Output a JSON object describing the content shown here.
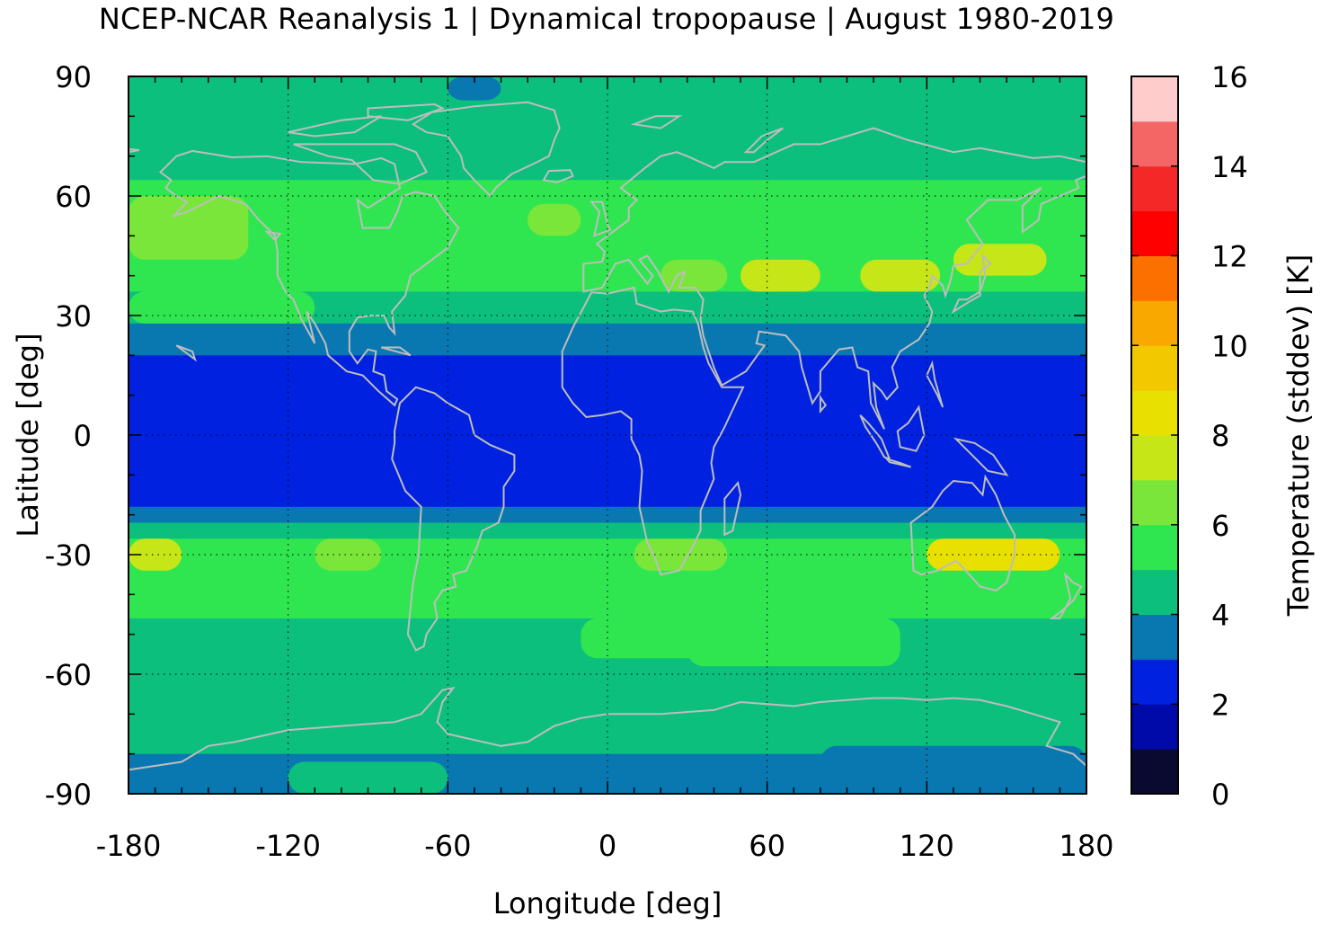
{
  "figure": {
    "title": "NCEP-NCAR Reanalysis 1 | Dynamical tropopause | August 1980-2019"
  },
  "chart_data": {
    "type": "heatmap",
    "title": "NCEP-NCAR Reanalysis 1 | Dynamical tropopause | August 1980-2019",
    "xlabel": "Longitude [deg]",
    "ylabel": "Latitude [deg]",
    "xlim": [
      -180,
      180
    ],
    "ylim": [
      -90,
      90
    ],
    "xticks": [
      -180,
      -120,
      -60,
      0,
      60,
      120,
      180
    ],
    "yticks": [
      -90,
      -60,
      -30,
      0,
      30,
      60,
      90
    ],
    "grid": true,
    "colorbar": {
      "label": "Temperature (stddev) [K]",
      "range": [
        0,
        16
      ],
      "ticks": [
        0,
        2,
        4,
        6,
        8,
        10,
        12,
        14,
        16
      ],
      "levels": [
        {
          "from": 0,
          "to": 1,
          "color": "#0a0a30"
        },
        {
          "from": 1,
          "to": 2,
          "color": "#000aa8"
        },
        {
          "from": 2,
          "to": 3,
          "color": "#0022e0"
        },
        {
          "from": 3,
          "to": 4,
          "color": "#0a78b0"
        },
        {
          "from": 4,
          "to": 5,
          "color": "#0cbf7d"
        },
        {
          "from": 5,
          "to": 6,
          "color": "#30e650"
        },
        {
          "from": 6,
          "to": 7,
          "color": "#7ae63a"
        },
        {
          "from": 7,
          "to": 8,
          "color": "#c6e618"
        },
        {
          "from": 8,
          "to": 9,
          "color": "#e8e000"
        },
        {
          "from": 9,
          "to": 10,
          "color": "#f2c800"
        },
        {
          "from": 10,
          "to": 11,
          "color": "#f9a800"
        },
        {
          "from": 11,
          "to": 12,
          "color": "#fc7000"
        },
        {
          "from": 12,
          "to": 13,
          "color": "#ff0000"
        },
        {
          "from": 13,
          "to": 14,
          "color": "#f52828"
        },
        {
          "from": 14,
          "to": 15,
          "color": "#f46666"
        },
        {
          "from": 15,
          "to": 16,
          "color": "#ffcccc"
        }
      ]
    },
    "zonal_profile": [
      {
        "lat_from": 78,
        "lat_to": 90,
        "value": 4.5
      },
      {
        "lat_from": 64,
        "lat_to": 78,
        "value": 4.5
      },
      {
        "lat_from": 52,
        "lat_to": 64,
        "value": 5.2
      },
      {
        "lat_from": 44,
        "lat_to": 52,
        "value": 5.5
      },
      {
        "lat_from": 36,
        "lat_to": 44,
        "value": 5.3
      },
      {
        "lat_from": 28,
        "lat_to": 36,
        "value": 4.5
      },
      {
        "lat_from": 20,
        "lat_to": 28,
        "value": 3.5
      },
      {
        "lat_from": -18,
        "lat_to": 20,
        "value": 2.5
      },
      {
        "lat_from": -22,
        "lat_to": -18,
        "value": 3.5
      },
      {
        "lat_from": -26,
        "lat_to": -22,
        "value": 4.5
      },
      {
        "lat_from": -36,
        "lat_to": -26,
        "value": 5.8
      },
      {
        "lat_from": -46,
        "lat_to": -36,
        "value": 5.3
      },
      {
        "lat_from": -55,
        "lat_to": -46,
        "value": 4.7
      },
      {
        "lat_from": -68,
        "lat_to": -55,
        "value": 4.5
      },
      {
        "lat_from": -80,
        "lat_to": -68,
        "value": 4.5
      },
      {
        "lat_from": -90,
        "lat_to": -80,
        "value": 3.5
      }
    ],
    "regional_features": [
      {
        "lon_from": -180,
        "lon_to": -135,
        "lat_from": 44,
        "lat_to": 60,
        "value": 6.3
      },
      {
        "lon_from": -75,
        "lon_to": -40,
        "lat_from": 44,
        "lat_to": 56,
        "value": 5.6
      },
      {
        "lon_from": -30,
        "lon_to": -10,
        "lat_from": 50,
        "lat_to": 58,
        "value": 6.2
      },
      {
        "lon_from": 50,
        "lon_to": 80,
        "lat_from": 36,
        "lat_to": 44,
        "value": 7.5
      },
      {
        "lon_from": 95,
        "lon_to": 125,
        "lat_from": 36,
        "lat_to": 44,
        "value": 7.6
      },
      {
        "lon_from": 130,
        "lon_to": 165,
        "lat_from": 40,
        "lat_to": 48,
        "value": 7.2
      },
      {
        "lon_from": 20,
        "lon_to": 45,
        "lat_from": 36,
        "lat_to": 44,
        "value": 6.3
      },
      {
        "lon_from": -180,
        "lon_to": -160,
        "lat_from": -34,
        "lat_to": -26,
        "value": 7.2
      },
      {
        "lon_from": -110,
        "lon_to": -85,
        "lat_from": -34,
        "lat_to": -26,
        "value": 6.5
      },
      {
        "lon_from": 120,
        "lon_to": 170,
        "lat_from": -34,
        "lat_to": -26,
        "value": 8.2
      },
      {
        "lon_from": 10,
        "lon_to": 45,
        "lat_from": -34,
        "lat_to": -26,
        "value": 6.3
      },
      {
        "lon_from": -180,
        "lon_to": -110,
        "lat_from": 28,
        "lat_to": 36,
        "value": 5.3
      },
      {
        "lon_from": -120,
        "lon_to": -60,
        "lat_from": -90,
        "lat_to": -82,
        "value": 4.5
      },
      {
        "lon_from": 80,
        "lon_to": 180,
        "lat_from": -90,
        "lat_to": -78,
        "value": 3.5
      },
      {
        "lon_from": -60,
        "lon_to": -40,
        "lat_from": 84,
        "lat_to": 90,
        "value": 3.5
      },
      {
        "lon_from": -10,
        "lon_to": 45,
        "lat_from": -56,
        "lat_to": -46,
        "value": 5.3
      },
      {
        "lon_from": 30,
        "lon_to": 110,
        "lat_from": -58,
        "lat_to": -46,
        "value": 5.5
      }
    ]
  }
}
